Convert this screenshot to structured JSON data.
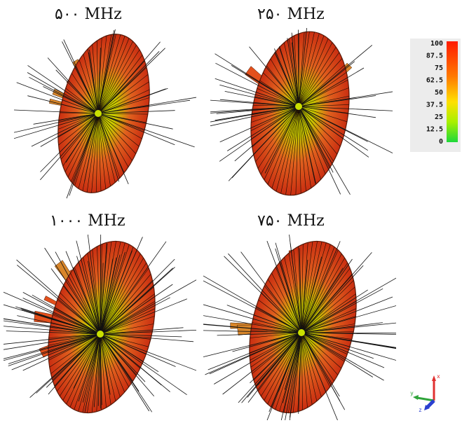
{
  "labels": {
    "top_left": "۵۰۰ MHz",
    "top_right": "۲۵۰ MHz",
    "bottom_left": "۱۰۰۰ MHz",
    "bottom_right": "۷۵۰ MHz"
  },
  "legend": {
    "ticks": [
      "100",
      "87.5",
      "75",
      "62.5",
      "50",
      "37.5",
      "25",
      "12.5",
      "0"
    ],
    "colors": {
      "high": "#ff2a00",
      "mid": "#e8e000",
      "low": "#28d83a"
    }
  },
  "axes": {
    "x": "x",
    "y": "y",
    "z": "z"
  },
  "colors": {
    "outline": "#222222",
    "lobe_dark": "#c42a12",
    "lobe_mid": "#e9552a",
    "center": "#d4e000"
  }
}
